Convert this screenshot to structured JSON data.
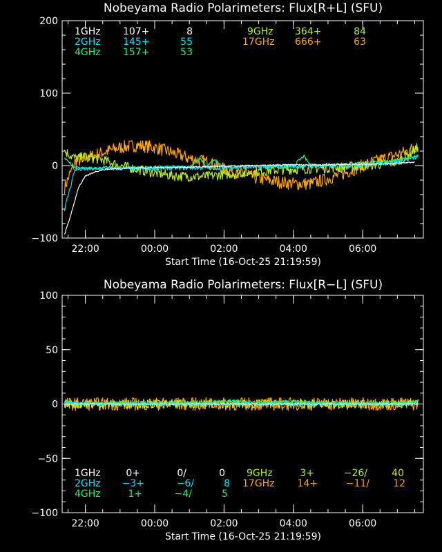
{
  "colors": {
    "1GHz": "#ffffff",
    "2GHz": "#00e5ff",
    "4GHz": "#22ee77",
    "9GHz": "#b8f020",
    "17GHz": "#ffa500",
    "axes": "#ffffff",
    "background": "#000000"
  },
  "chart_data": [
    {
      "type": "line",
      "title": "Nobeyama Radio Polarimeters: Flux[R+L] (SFU)",
      "xlabel": "Start Time (16-Oct-25 21:19:59)",
      "ylabel": "",
      "ylim": [
        -100,
        200
      ],
      "y_ticks": [
        "200",
        "100",
        "0",
        "−100"
      ],
      "x_ticks": [
        "22:00",
        "00:00",
        "02:00",
        "04:00",
        "06:00"
      ],
      "x_tick_hours": [
        22,
        24,
        26,
        28,
        30
      ],
      "xlim_hours": [
        21.33,
        31.75
      ],
      "legend": [
        {
          "freq": "1GHz",
          "base": "107+",
          "value": "8"
        },
        {
          "freq": "2GHz",
          "base": "145+",
          "value": "55"
        },
        {
          "freq": "4GHz",
          "base": "157+",
          "value": "53"
        },
        {
          "freq": "9GHz",
          "base": "364+",
          "value": "84"
        },
        {
          "freq": "17GHz",
          "base": "666+",
          "value": "63"
        }
      ],
      "series": [
        {
          "name": "17GHz",
          "x": [
            21.4,
            21.7,
            22.0,
            22.5,
            23.0,
            23.5,
            24.0,
            24.5,
            25.0,
            25.5,
            26.0,
            26.5,
            27.0,
            27.5,
            28.0,
            28.5,
            29.0,
            29.5,
            30.0,
            30.5,
            31.0,
            31.3,
            31.6
          ],
          "y": [
            -30,
            5,
            10,
            18,
            25,
            28,
            25,
            18,
            10,
            5,
            -5,
            -12,
            -18,
            -22,
            -25,
            -25,
            -18,
            -10,
            0,
            8,
            15,
            20,
            28
          ]
        },
        {
          "name": "9GHz",
          "x": [
            21.4,
            21.7,
            22.0,
            22.5,
            23.0,
            23.5,
            24.0,
            24.5,
            25.0,
            25.5,
            26.0,
            26.5,
            27.0,
            27.5,
            28.0,
            28.5,
            29.0,
            29.5,
            30.0,
            30.5,
            31.0,
            31.3,
            31.6
          ],
          "y": [
            20,
            10,
            12,
            8,
            0,
            -5,
            -10,
            -14,
            -15,
            -15,
            -12,
            -10,
            -8,
            -6,
            -5,
            -4,
            -3,
            -2,
            0,
            2,
            5,
            15,
            25
          ]
        },
        {
          "name": "4GHz",
          "x": [
            21.4,
            21.7,
            22.0,
            22.5,
            23.0,
            23.5,
            24.0,
            24.5,
            25.0,
            25.3,
            25.5,
            25.7,
            26.0,
            26.5,
            26.8,
            27.0,
            27.5,
            28.0,
            28.3,
            28.5,
            29.0,
            29.5,
            30.0,
            30.5,
            31.0,
            31.3,
            31.6
          ],
          "y": [
            10,
            -3,
            -4,
            -3,
            -3,
            -3,
            -2,
            -2,
            -2,
            10,
            -2,
            8,
            -2,
            -1,
            -1,
            -1,
            0,
            0,
            13,
            0,
            1,
            2,
            3,
            5,
            7,
            10,
            15
          ]
        },
        {
          "name": "2GHz",
          "x": [
            21.4,
            21.7,
            22.0,
            22.5,
            23.0,
            23.5,
            24.0,
            24.5,
            25.0,
            25.5,
            26.0,
            26.5,
            27.0,
            27.5,
            28.0,
            28.5,
            29.0,
            29.5,
            30.0,
            30.5,
            31.0,
            31.3,
            31.6
          ],
          "y": [
            -60,
            -5,
            -5,
            -4,
            -4,
            -4,
            -4,
            -3,
            -3,
            -3,
            -3,
            -2,
            -2,
            -2,
            -1,
            -1,
            0,
            0,
            1,
            3,
            5,
            8,
            12
          ]
        },
        {
          "name": "1GHz",
          "x": [
            21.4,
            21.6,
            21.8,
            22.0,
            22.3,
            22.6,
            23.0,
            23.5,
            24.0,
            25.0,
            26.0,
            27.0,
            28.0,
            29.0,
            30.0,
            31.0,
            31.5
          ],
          "y": [
            -95,
            -65,
            -30,
            -15,
            -8,
            -5,
            -4,
            -3,
            -3,
            -2,
            -1,
            0,
            1,
            1,
            2,
            3,
            5
          ]
        }
      ]
    },
    {
      "type": "line",
      "title": "Nobeyama Radio Polarimeters: Flux[R−L] (SFU)",
      "xlabel": "Start Time (16-Oct-25 21:19:59)",
      "ylabel": "",
      "ylim": [
        -100,
        100
      ],
      "y_ticks": [
        "100",
        "50",
        "0",
        "−50",
        "−100"
      ],
      "x_ticks": [
        "22:00",
        "00:00",
        "02:00",
        "04:00",
        "06:00"
      ],
      "x_tick_hours": [
        22,
        24,
        26,
        28,
        30
      ],
      "xlim_hours": [
        21.33,
        31.75
      ],
      "legend": [
        {
          "freq": "1GHz",
          "base": "0+",
          "ratio": "0/",
          "value": "0"
        },
        {
          "freq": "2GHz",
          "base": "−3+",
          "ratio": "−6/",
          "value": "8"
        },
        {
          "freq": "4GHz",
          "base": "1+",
          "ratio": "−4/",
          "value": "5"
        },
        {
          "freq": "9GHz",
          "base": "3+",
          "ratio": "−26/",
          "value": "40"
        },
        {
          "freq": "17GHz",
          "base": "14+",
          "ratio": "−11/",
          "value": "12"
        }
      ],
      "series": [
        {
          "name": "17GHz",
          "x": [
            21.4,
            22.0,
            23.0,
            24.0,
            25.0,
            26.0,
            27.0,
            28.0,
            29.0,
            30.0,
            31.0,
            31.6
          ],
          "y": [
            0,
            0,
            0,
            0,
            0,
            0,
            0,
            0,
            0,
            0,
            0,
            0
          ]
        },
        {
          "name": "9GHz",
          "x": [
            21.4,
            22.0,
            23.0,
            24.0,
            25.0,
            26.0,
            27.0,
            28.0,
            29.0,
            30.0,
            31.0,
            31.6
          ],
          "y": [
            0,
            0,
            0,
            0,
            0,
            0,
            0,
            0,
            0,
            0,
            0,
            0
          ]
        },
        {
          "name": "4GHz",
          "x": [
            21.4,
            22.0,
            23.0,
            24.0,
            25.0,
            26.0,
            27.0,
            28.0,
            29.0,
            30.0,
            31.0,
            31.6
          ],
          "y": [
            1,
            1,
            1,
            1,
            1,
            3,
            1,
            2,
            1,
            1,
            1,
            2
          ]
        },
        {
          "name": "2GHz",
          "x": [
            21.4,
            22.0,
            23.0,
            24.0,
            25.0,
            26.0,
            27.0,
            28.0,
            29.0,
            30.0,
            31.0,
            31.6
          ],
          "y": [
            2,
            0,
            0,
            0,
            0,
            0,
            0,
            0,
            0,
            0,
            0,
            0
          ]
        },
        {
          "name": "1GHz",
          "x": [
            21.4,
            22.0,
            23.0,
            24.0,
            25.0,
            26.0,
            27.0,
            28.0,
            29.0,
            30.0,
            31.0,
            31.6
          ],
          "y": [
            0,
            0,
            0,
            0,
            0,
            0,
            0,
            0,
            0,
            0,
            0,
            0
          ]
        }
      ]
    }
  ]
}
